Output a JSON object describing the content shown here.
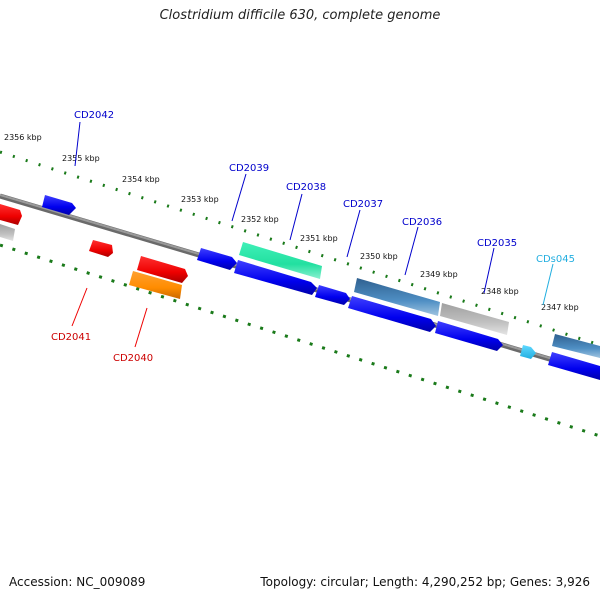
{
  "title": "Clostridium difficile 630, complete genome",
  "footer": {
    "accession": "Accession: NC_009089",
    "summary": "Topology: circular; Length: 4,290,252 bp; Genes: 3,926"
  },
  "ticks": [
    "2356 kbp",
    "2355 kbp",
    "2354 kbp",
    "2353 kbp",
    "2352 kbp",
    "2351 kbp",
    "2350 kbp",
    "2349 kbp",
    "2348 kbp",
    "2347 kbp"
  ],
  "colors": {
    "backbone": "#808080",
    "ruler": "#1a7a1a",
    "forward_cds": "#0000ee",
    "rrna_like": "#22e0a0",
    "pseudo_blue": "#3f7fb4",
    "gray_feature": "#b8b8b8",
    "red_feature": "#ee0000",
    "orange_feature": "#ff8c00",
    "cds_light": "#33c8f0"
  },
  "labels": {
    "blue": [
      "CD2042",
      "CD2039",
      "CD2038",
      "CD2037",
      "CD2036",
      "CD2035"
    ],
    "red": [
      "CD2041",
      "CD2040"
    ],
    "cyan": [
      "CDs045"
    ]
  }
}
